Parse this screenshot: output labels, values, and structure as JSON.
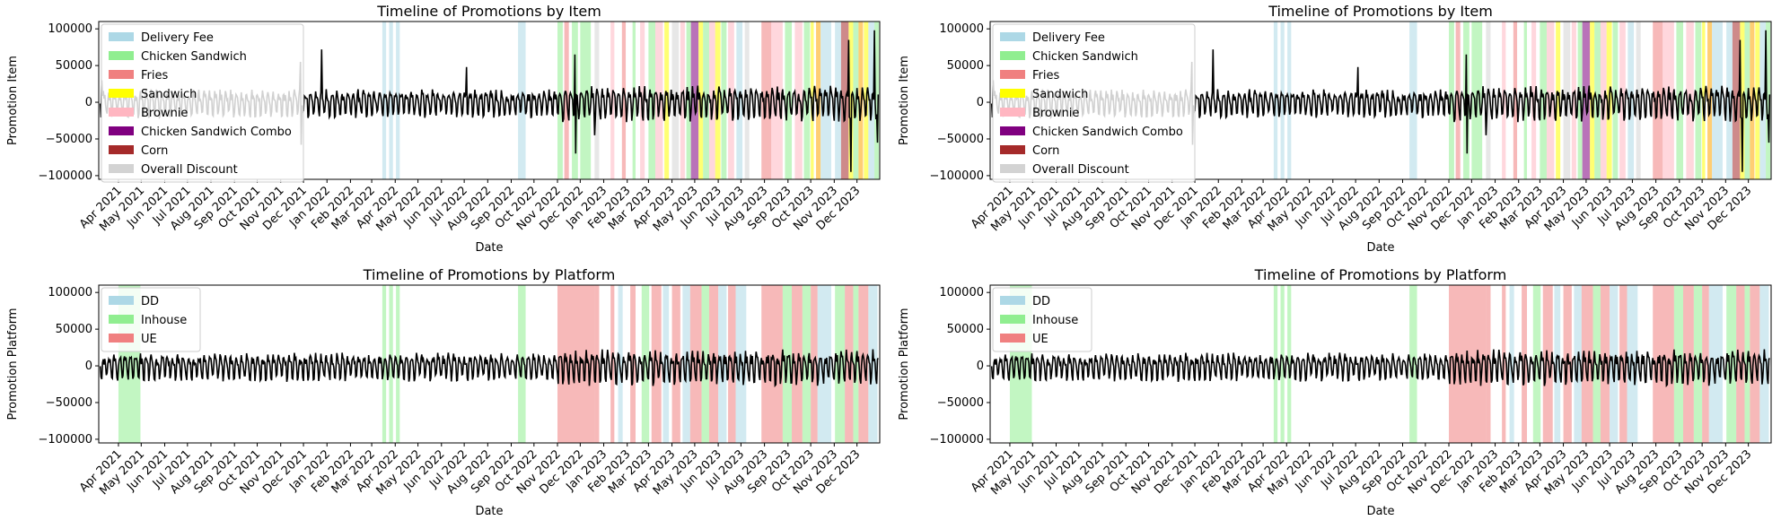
{
  "figure": {
    "description": "Four subplots (2x2) showing a residual time series with shaded promotion periods.",
    "tick_labels": [
      "Apr 2021",
      "May 2021",
      "Jun 2021",
      "Jul 2021",
      "Aug 2021",
      "Sep 2021",
      "Oct 2021",
      "Nov 2021",
      "Dec 2021",
      "Jan 2022",
      "Feb 2022",
      "Mar 2022",
      "Apr 2022",
      "May 2022",
      "Jun 2022",
      "Jul 2022",
      "Aug 2022",
      "Sep 2022",
      "Oct 2022",
      "Nov 2022",
      "Dec 2022",
      "Jan 2023",
      "Feb 2023",
      "Mar 2023",
      "Apr 2023",
      "May 2023",
      "Jun 2023",
      "Jul 2023",
      "Aug 2023",
      "Sep 2023",
      "Oct 2023",
      "Nov 2023",
      "Dec 2023"
    ],
    "y_ticks": [
      100000,
      50000,
      0,
      -50000,
      -100000
    ],
    "y_tick_labels": [
      "100000",
      "50000",
      "0",
      "−50000",
      "−100000"
    ]
  },
  "chart_data": [
    {
      "type": "line",
      "title": "Timeline of Promotions by Item",
      "xlabel": "Date",
      "ylabel": "Promotion Item",
      "xlim": [
        "2021-03-06",
        "2023-12-31"
      ],
      "ylim": [
        -105000,
        110000
      ],
      "legend": "upper-left",
      "legend_entries": [
        {
          "label": "Delivery Fee",
          "color": "#add8e6"
        },
        {
          "label": "Chicken Sandwich",
          "color": "#90ee90"
        },
        {
          "label": "Fries",
          "color": "#f08080"
        },
        {
          "label": "Sandwich",
          "color": "#ffff00"
        },
        {
          "label": "Brownie",
          "color": "#ffb6c1"
        },
        {
          "label": "Chicken Sandwich Combo",
          "color": "#800080"
        },
        {
          "label": "Corn",
          "color": "#a52a2a"
        },
        {
          "label": "Overall Discount",
          "color": "#d3d3d3"
        }
      ],
      "series": [
        {
          "name": "residual",
          "color": "#000000",
          "amplitude_approx": 18000
        }
      ],
      "spikes": [
        {
          "date": "2021-03-10",
          "value": 30000
        },
        {
          "date": "2021-11-27",
          "value": 55000
        },
        {
          "date": "2021-11-28",
          "value": -58000
        },
        {
          "date": "2021-12-25",
          "value": 72000
        },
        {
          "date": "2022-07-04",
          "value": 48000
        },
        {
          "date": "2022-11-24",
          "value": 65000
        },
        {
          "date": "2022-11-25",
          "value": -70000
        },
        {
          "date": "2022-12-20",
          "value": -45000
        },
        {
          "date": "2023-11-20",
          "value": 85000
        },
        {
          "date": "2023-11-23",
          "value": -95000
        },
        {
          "date": "2023-12-24",
          "value": 98000
        },
        {
          "date": "2023-12-28",
          "value": -55000
        }
      ],
      "bands": [
        {
          "start": "2022-03-15",
          "end": "2022-03-20",
          "color": "#add8e6"
        },
        {
          "start": "2022-03-24",
          "end": "2022-03-29",
          "color": "#add8e6"
        },
        {
          "start": "2022-04-02",
          "end": "2022-04-07",
          "color": "#add8e6"
        },
        {
          "start": "2022-09-10",
          "end": "2022-09-20",
          "color": "#add8e6"
        },
        {
          "start": "2022-11-01",
          "end": "2022-11-08",
          "color": "#90ee90"
        },
        {
          "start": "2022-11-10",
          "end": "2022-11-16",
          "color": "#f08080"
        },
        {
          "start": "2022-11-20",
          "end": "2022-11-28",
          "color": "#90ee90"
        },
        {
          "start": "2022-12-01",
          "end": "2022-12-15",
          "color": "#90ee90"
        },
        {
          "start": "2022-12-20",
          "end": "2022-12-26",
          "color": "#d3d3d3"
        },
        {
          "start": "2023-01-10",
          "end": "2023-01-15",
          "color": "#ffb6c1"
        },
        {
          "start": "2023-01-25",
          "end": "2023-01-30",
          "color": "#f08080"
        },
        {
          "start": "2023-02-08",
          "end": "2023-02-12",
          "color": "#90ee90"
        },
        {
          "start": "2023-02-18",
          "end": "2023-02-24",
          "color": "#ffb6c1"
        },
        {
          "start": "2023-03-01",
          "end": "2023-03-10",
          "color": "#90ee90"
        },
        {
          "start": "2023-03-10",
          "end": "2023-03-20",
          "color": "#ffb6c1"
        },
        {
          "start": "2023-03-22",
          "end": "2023-03-28",
          "color": "#ffff00"
        },
        {
          "start": "2023-04-01",
          "end": "2023-04-10",
          "color": "#d3d3d3"
        },
        {
          "start": "2023-04-12",
          "end": "2023-04-18",
          "color": "#ffb6c1"
        },
        {
          "start": "2023-04-20",
          "end": "2023-04-26",
          "color": "#90ee90"
        },
        {
          "start": "2023-04-26",
          "end": "2023-05-06",
          "color": "#800080"
        },
        {
          "start": "2023-05-06",
          "end": "2023-05-12",
          "color": "#ffff00"
        },
        {
          "start": "2023-05-12",
          "end": "2023-05-20",
          "color": "#90ee90"
        },
        {
          "start": "2023-05-20",
          "end": "2023-05-28",
          "color": "#ffb6c1"
        },
        {
          "start": "2023-05-28",
          "end": "2023-06-04",
          "color": "#ffff00"
        },
        {
          "start": "2023-06-05",
          "end": "2023-06-12",
          "color": "#90ee90"
        },
        {
          "start": "2023-06-14",
          "end": "2023-06-22",
          "color": "#ffb6c1"
        },
        {
          "start": "2023-06-25",
          "end": "2023-07-03",
          "color": "#add8e6"
        },
        {
          "start": "2023-07-06",
          "end": "2023-07-12",
          "color": "#d3d3d3"
        },
        {
          "start": "2023-07-28",
          "end": "2023-08-10",
          "color": "#f08080"
        },
        {
          "start": "2023-08-10",
          "end": "2023-08-25",
          "color": "#ffb6c1"
        },
        {
          "start": "2023-08-28",
          "end": "2023-09-06",
          "color": "#90ee90"
        },
        {
          "start": "2023-09-10",
          "end": "2023-09-20",
          "color": "#ffb6c1"
        },
        {
          "start": "2023-09-22",
          "end": "2023-09-30",
          "color": "#90ee90"
        },
        {
          "start": "2023-10-01",
          "end": "2023-10-05",
          "color": "#ffff00"
        },
        {
          "start": "2023-10-08",
          "end": "2023-10-14",
          "color": "#ffa500"
        },
        {
          "start": "2023-10-14",
          "end": "2023-10-28",
          "color": "#add8e6"
        },
        {
          "start": "2023-11-02",
          "end": "2023-11-10",
          "color": "#add8e6"
        },
        {
          "start": "2023-11-10",
          "end": "2023-11-20",
          "color": "#a52a2a"
        },
        {
          "start": "2023-11-20",
          "end": "2023-11-26",
          "color": "#ffff00"
        },
        {
          "start": "2023-11-26",
          "end": "2023-12-03",
          "color": "#90ee90"
        },
        {
          "start": "2023-12-03",
          "end": "2023-12-09",
          "color": "#ffa500"
        },
        {
          "start": "2023-12-10",
          "end": "2023-12-16",
          "color": "#ffff00"
        },
        {
          "start": "2023-12-16",
          "end": "2023-12-24",
          "color": "#add8e6"
        },
        {
          "start": "2023-12-24",
          "end": "2023-12-30",
          "color": "#90ee90"
        }
      ]
    },
    {
      "type": "line",
      "title": "Timeline of Promotions by Item",
      "xlabel": "Date",
      "ylabel": "Promotion Item",
      "same_as": 0
    },
    {
      "type": "line",
      "title": "Timeline of Promotions by Platform",
      "xlabel": "Date",
      "ylabel": "Promotion Platform",
      "xlim": [
        "2021-03-06",
        "2023-12-31"
      ],
      "ylim": [
        -105000,
        110000
      ],
      "legend": "upper-left",
      "legend_entries": [
        {
          "label": "DD",
          "color": "#add8e6"
        },
        {
          "label": "Inhouse",
          "color": "#90ee90"
        },
        {
          "label": "UE",
          "color": "#f08080"
        }
      ],
      "series": [
        {
          "name": "residual",
          "color": "#000000",
          "amplitude_approx": 18000
        }
      ],
      "bands": [
        {
          "start": "2021-04-01",
          "end": "2021-04-30",
          "color": "#90ee90"
        },
        {
          "start": "2022-03-15",
          "end": "2022-03-20",
          "color": "#90ee90"
        },
        {
          "start": "2022-03-24",
          "end": "2022-03-29",
          "color": "#90ee90"
        },
        {
          "start": "2022-04-02",
          "end": "2022-04-07",
          "color": "#90ee90"
        },
        {
          "start": "2022-09-10",
          "end": "2022-09-20",
          "color": "#90ee90"
        },
        {
          "start": "2022-11-01",
          "end": "2022-12-20",
          "color": "#f08080"
        },
        {
          "start": "2022-12-20",
          "end": "2022-12-26",
          "color": "#f08080"
        },
        {
          "start": "2023-01-10",
          "end": "2023-01-15",
          "color": "#f08080"
        },
        {
          "start": "2023-01-20",
          "end": "2023-01-26",
          "color": "#add8e6"
        },
        {
          "start": "2023-02-05",
          "end": "2023-02-12",
          "color": "#f08080"
        },
        {
          "start": "2023-02-20",
          "end": "2023-03-02",
          "color": "#90ee90"
        },
        {
          "start": "2023-03-05",
          "end": "2023-03-18",
          "color": "#f08080"
        },
        {
          "start": "2023-03-20",
          "end": "2023-03-28",
          "color": "#add8e6"
        },
        {
          "start": "2023-04-01",
          "end": "2023-04-12",
          "color": "#f08080"
        },
        {
          "start": "2023-04-15",
          "end": "2023-04-25",
          "color": "#add8e6"
        },
        {
          "start": "2023-04-25",
          "end": "2023-05-10",
          "color": "#f08080"
        },
        {
          "start": "2023-05-10",
          "end": "2023-05-20",
          "color": "#90ee90"
        },
        {
          "start": "2023-05-20",
          "end": "2023-06-01",
          "color": "#f08080"
        },
        {
          "start": "2023-06-01",
          "end": "2023-06-12",
          "color": "#add8e6"
        },
        {
          "start": "2023-06-14",
          "end": "2023-06-24",
          "color": "#f08080"
        },
        {
          "start": "2023-06-24",
          "end": "2023-07-08",
          "color": "#add8e6"
        },
        {
          "start": "2023-07-28",
          "end": "2023-08-25",
          "color": "#f08080"
        },
        {
          "start": "2023-08-25",
          "end": "2023-09-06",
          "color": "#90ee90"
        },
        {
          "start": "2023-09-06",
          "end": "2023-09-20",
          "color": "#f08080"
        },
        {
          "start": "2023-09-20",
          "end": "2023-10-01",
          "color": "#90ee90"
        },
        {
          "start": "2023-10-01",
          "end": "2023-10-10",
          "color": "#f08080"
        },
        {
          "start": "2023-10-10",
          "end": "2023-10-28",
          "color": "#add8e6"
        },
        {
          "start": "2023-11-02",
          "end": "2023-11-15",
          "color": "#90ee90"
        },
        {
          "start": "2023-11-15",
          "end": "2023-11-26",
          "color": "#f08080"
        },
        {
          "start": "2023-11-26",
          "end": "2023-12-03",
          "color": "#90ee90"
        },
        {
          "start": "2023-12-03",
          "end": "2023-12-16",
          "color": "#f08080"
        },
        {
          "start": "2023-12-16",
          "end": "2023-12-28",
          "color": "#add8e6"
        }
      ]
    },
    {
      "type": "line",
      "title": "Timeline of Promotions by Platform",
      "xlabel": "Date",
      "ylabel": "Promotion Platform",
      "same_as": 2
    }
  ]
}
